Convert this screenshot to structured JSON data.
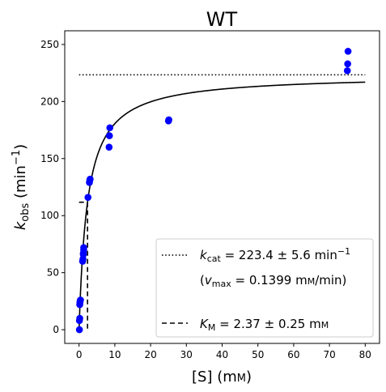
{
  "chart_data": {
    "type": "scatter",
    "title": "WT",
    "xlabel": {
      "base": "[S] (m",
      "unit": "M",
      "suffix": ")"
    },
    "ylabel": {
      "k": "k",
      "sub": "obs",
      "rest": " (min",
      "sup": "−1",
      "close": ")"
    },
    "xlim": [
      -4,
      84
    ],
    "ylim": [
      -12,
      262
    ],
    "xticks": [
      0,
      10,
      20,
      30,
      40,
      50,
      60,
      70,
      80
    ],
    "yticks": [
      0,
      50,
      100,
      150,
      200,
      250
    ],
    "grid": false,
    "legend_position": "lower-right",
    "colors": {
      "points": "#0000ff",
      "lines": "#000000"
    },
    "series": [
      {
        "kind": "points",
        "x": [
          0.1,
          0.1,
          0.2,
          0.2,
          0.25,
          0.3,
          0.4,
          1.0,
          1.1,
          1.2,
          1.2,
          1.3,
          1.3,
          2.5,
          2.9,
          3.0,
          3.1,
          8.4,
          8.5,
          8.6,
          25.0,
          25.1,
          75.0,
          75.1,
          75.2
        ],
        "y": [
          0,
          8,
          10,
          22,
          24,
          25,
          26,
          60,
          62,
          66,
          67,
          70,
          72,
          116,
          129,
          131,
          132,
          160,
          170,
          177,
          183,
          184,
          227,
          233,
          244
        ]
      },
      {
        "kind": "fit",
        "kcat": 223.4,
        "KM": 2.37,
        "x_range": [
          0,
          80
        ]
      },
      {
        "kind": "kcat-line",
        "y": 223.4,
        "x_range": [
          0,
          80
        ]
      },
      {
        "kind": "km-lines",
        "x": 2.37,
        "y": 111.7,
        "x_start": 0
      }
    ],
    "legend": [
      {
        "style": "dotted",
        "k": "k",
        "sub": "cat",
        "rest": " = 223.4 ± 5.6 min",
        "sup": "−1"
      },
      {
        "style": "none",
        "lead": "(",
        "v": "v",
        "sub": "max",
        "rest": " = 0.1399 m",
        "unit": "M",
        "tail": "/min)"
      },
      {
        "style": "dashed",
        "k": "K",
        "sub": "M",
        "rest": " = 2.37 ± 0.25 m",
        "unit": "M"
      }
    ]
  }
}
